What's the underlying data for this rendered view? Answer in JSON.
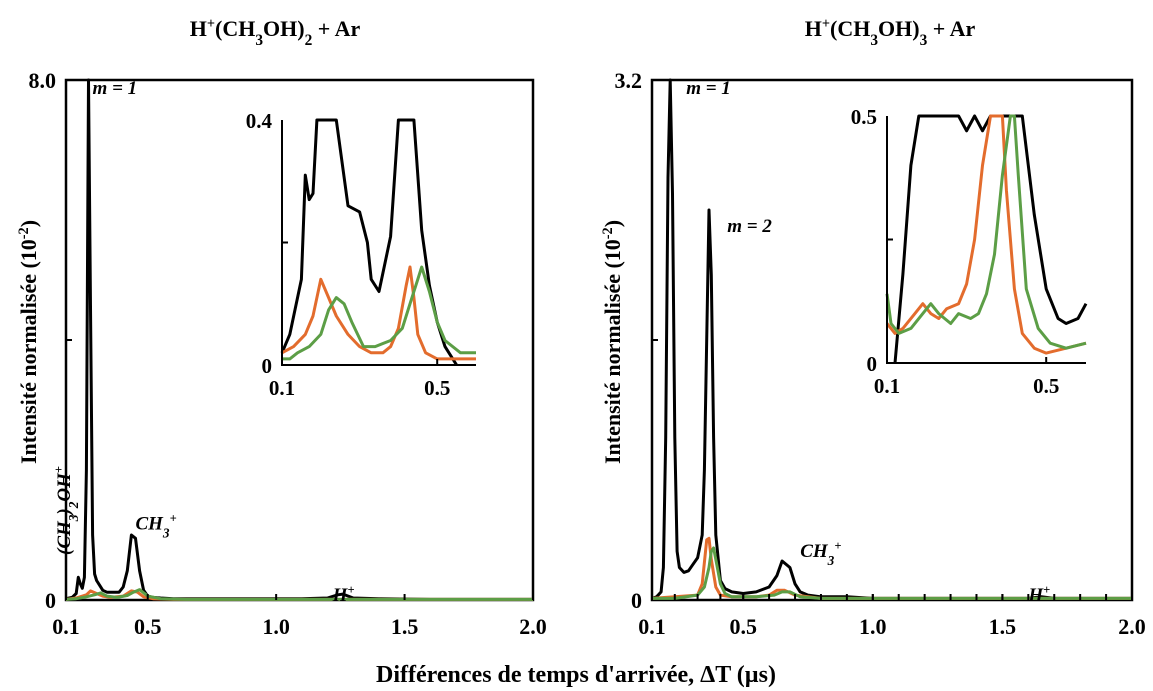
{
  "figure": {
    "xlabel": "Différences de temps d'arrivée, ΔT (µs)",
    "colors": {
      "black": "#000000",
      "orange": "#e36c2d",
      "green": "#5c9e46"
    }
  },
  "chart_data": [
    {
      "id": "left",
      "type": "line",
      "title_parts": [
        "H",
        "+",
        "(CH",
        "3",
        "OH)",
        "2",
        " + Ar"
      ],
      "title": "H+(CH3OH)2 + Ar",
      "ylabel": "Intensité normalisée (10-2)",
      "ylabel_parts": [
        "Intensité normalisée (10",
        "-2",
        ")"
      ],
      "xlim": [
        0.1,
        2.0
      ],
      "ylim": [
        0,
        8.0
      ],
      "x_ticks": [
        "0.1",
        "0.5",
        "1.0",
        "1.5",
        "2.0"
      ],
      "x_tick_values": [
        0.1,
        0.5,
        1.0,
        1.5,
        2.0
      ],
      "y_ticks": [
        "0",
        "8.0"
      ],
      "y_tick_values": [
        0,
        8.0
      ],
      "annotations": [
        {
          "text": "m = 1",
          "x": 0.23,
          "y": 8.0
        },
        {
          "text": "(CH3)2OH+",
          "x": 0.12,
          "y": 0.6,
          "parts": [
            "(CH",
            "3",
            ")",
            "2",
            "OH",
            "+"
          ]
        },
        {
          "text": "CH3+",
          "x": 0.44,
          "y": 1.3,
          "parts": [
            "CH",
            "3",
            "+"
          ]
        },
        {
          "text": "H+",
          "x": 1.22,
          "y": 0.2,
          "parts": [
            "H",
            "+"
          ]
        }
      ],
      "series": [
        {
          "color": "#000000",
          "x": [
            0.1,
            0.13,
            0.15,
            0.16,
            0.17,
            0.18,
            0.19,
            0.2,
            0.21,
            0.22,
            0.23,
            0.24,
            0.25,
            0.26,
            0.28,
            0.3,
            0.33,
            0.36,
            0.38,
            0.4,
            0.42,
            0.44,
            0.46,
            0.48,
            0.5,
            0.52,
            0.55,
            0.6,
            0.7,
            0.8,
            0.9,
            1.0,
            1.1,
            1.2,
            1.24,
            1.26,
            1.3,
            1.4,
            1.6,
            1.8,
            2.0
          ],
          "y": [
            0.02,
            0.04,
            0.1,
            0.35,
            0.25,
            0.18,
            0.35,
            2.0,
            8.0,
            4.5,
            1.0,
            0.4,
            0.3,
            0.25,
            0.15,
            0.12,
            0.12,
            0.12,
            0.2,
            0.45,
            1.0,
            0.95,
            0.45,
            0.15,
            0.06,
            0.04,
            0.03,
            0.02,
            0.02,
            0.02,
            0.02,
            0.02,
            0.02,
            0.03,
            0.08,
            0.09,
            0.03,
            0.02,
            0.01,
            0.01,
            0.01
          ]
        },
        {
          "color": "#e36c2d",
          "x": [
            0.1,
            0.15,
            0.2,
            0.22,
            0.25,
            0.28,
            0.32,
            0.38,
            0.42,
            0.45,
            0.48,
            0.52,
            0.6,
            1.0,
            1.5,
            2.0
          ],
          "y": [
            0.01,
            0.03,
            0.08,
            0.14,
            0.1,
            0.06,
            0.04,
            0.06,
            0.14,
            0.12,
            0.05,
            0.02,
            0.01,
            0.01,
            0.01,
            0.01
          ]
        },
        {
          "color": "#5c9e46",
          "x": [
            0.1,
            0.15,
            0.2,
            0.24,
            0.27,
            0.3,
            0.35,
            0.4,
            0.43,
            0.46,
            0.5,
            0.55,
            0.65,
            1.0,
            1.5,
            2.0
          ],
          "y": [
            0.01,
            0.02,
            0.05,
            0.08,
            0.11,
            0.06,
            0.04,
            0.07,
            0.12,
            0.16,
            0.06,
            0.02,
            0.01,
            0.01,
            0.01,
            0.01
          ]
        }
      ]
    },
    {
      "id": "left-inset",
      "type": "line",
      "xlim": [
        0.1,
        0.6
      ],
      "ylim": [
        0,
        0.4
      ],
      "x_ticks": [
        "0.1",
        "0.5"
      ],
      "x_tick_values": [
        0.1,
        0.5
      ],
      "y_ticks": [
        "0",
        "0.4"
      ],
      "y_tick_values": [
        0,
        0.4
      ],
      "series": [
        {
          "color": "#000000",
          "x": [
            0.1,
            0.12,
            0.15,
            0.16,
            0.17,
            0.18,
            0.19,
            0.2,
            0.22,
            0.24,
            0.27,
            0.3,
            0.32,
            0.33,
            0.35,
            0.36,
            0.38,
            0.4,
            0.41,
            0.44,
            0.46,
            0.48,
            0.5,
            0.52,
            0.55
          ],
          "y": [
            0.02,
            0.05,
            0.14,
            0.31,
            0.27,
            0.28,
            0.4,
            0.4,
            0.4,
            0.4,
            0.26,
            0.25,
            0.2,
            0.14,
            0.12,
            0.15,
            0.21,
            0.4,
            0.4,
            0.4,
            0.22,
            0.13,
            0.07,
            0.03,
            0.0
          ]
        },
        {
          "color": "#e36c2d",
          "x": [
            0.1,
            0.13,
            0.16,
            0.18,
            0.2,
            0.22,
            0.24,
            0.27,
            0.3,
            0.33,
            0.36,
            0.38,
            0.4,
            0.42,
            0.43,
            0.44,
            0.45,
            0.47,
            0.5,
            0.55,
            0.6
          ],
          "y": [
            0.02,
            0.03,
            0.05,
            0.08,
            0.14,
            0.11,
            0.08,
            0.05,
            0.03,
            0.02,
            0.02,
            0.03,
            0.06,
            0.13,
            0.16,
            0.11,
            0.05,
            0.02,
            0.01,
            0.01,
            0.01
          ]
        },
        {
          "color": "#5c9e46",
          "x": [
            0.1,
            0.12,
            0.14,
            0.17,
            0.2,
            0.22,
            0.24,
            0.26,
            0.28,
            0.31,
            0.34,
            0.38,
            0.41,
            0.43,
            0.45,
            0.46,
            0.48,
            0.5,
            0.52,
            0.56,
            0.6
          ],
          "y": [
            0.01,
            0.01,
            0.02,
            0.03,
            0.05,
            0.09,
            0.11,
            0.1,
            0.07,
            0.03,
            0.03,
            0.04,
            0.06,
            0.1,
            0.14,
            0.16,
            0.12,
            0.07,
            0.04,
            0.02,
            0.02
          ]
        }
      ]
    },
    {
      "id": "right",
      "type": "line",
      "title_parts": [
        "H",
        "+",
        "(CH",
        "3",
        "OH)",
        "3",
        " + Ar"
      ],
      "title": "H+(CH3OH)3 + Ar",
      "ylabel": "Intensité normalisée (10-2)",
      "ylabel_parts": [
        "Intensité normalisée (10",
        "-2",
        ")"
      ],
      "xlim": [
        0.1,
        2.0
      ],
      "ylim": [
        0,
        3.2
      ],
      "x_ticks": [
        "0.1",
        "0.5",
        "1.0",
        "1.5",
        "2.0"
      ],
      "x_tick_values": [
        0.1,
        0.5,
        1.0,
        1.5,
        2.0
      ],
      "y_ticks": [
        "0",
        "3.2"
      ],
      "y_tick_values": [
        0,
        3.2
      ],
      "annotations": [
        {
          "text": "m = 1",
          "x": 0.25,
          "y": 3.2
        },
        {
          "text": "m = 2",
          "x": 0.43,
          "y": 2.35
        },
        {
          "text": "CH3+",
          "x": 0.72,
          "y": 0.35,
          "parts": [
            "CH",
            "3",
            "+"
          ]
        },
        {
          "text": "H+",
          "x": 1.6,
          "y": 0.08,
          "parts": [
            "H",
            "+"
          ]
        }
      ],
      "series": [
        {
          "color": "#000000",
          "x": [
            0.1,
            0.12,
            0.14,
            0.15,
            0.16,
            0.17,
            0.18,
            0.19,
            0.2,
            0.21,
            0.22,
            0.24,
            0.26,
            0.28,
            0.3,
            0.32,
            0.33,
            0.34,
            0.35,
            0.36,
            0.37,
            0.38,
            0.4,
            0.42,
            0.45,
            0.5,
            0.55,
            0.6,
            0.63,
            0.65,
            0.68,
            0.7,
            0.72,
            0.75,
            0.8,
            0.9,
            1.0,
            1.2,
            1.4,
            1.6,
            1.65,
            1.7,
            1.8,
            2.0
          ],
          "y": [
            0.01,
            0.02,
            0.05,
            0.2,
            1.0,
            2.6,
            3.2,
            2.5,
            1.0,
            0.3,
            0.2,
            0.17,
            0.18,
            0.22,
            0.26,
            0.4,
            0.8,
            1.6,
            2.4,
            2.0,
            1.0,
            0.4,
            0.12,
            0.07,
            0.05,
            0.04,
            0.05,
            0.08,
            0.15,
            0.24,
            0.2,
            0.1,
            0.05,
            0.03,
            0.02,
            0.02,
            0.01,
            0.01,
            0.01,
            0.01,
            0.02,
            0.01,
            0.01,
            0.01
          ]
        },
        {
          "color": "#e36c2d",
          "x": [
            0.1,
            0.2,
            0.3,
            0.32,
            0.34,
            0.35,
            0.36,
            0.38,
            0.4,
            0.45,
            0.55,
            0.6,
            0.63,
            0.66,
            0.7,
            0.8,
            1.0,
            1.5,
            2.0
          ],
          "y": [
            0.01,
            0.02,
            0.03,
            0.1,
            0.37,
            0.38,
            0.25,
            0.08,
            0.03,
            0.02,
            0.02,
            0.03,
            0.06,
            0.06,
            0.03,
            0.01,
            0.01,
            0.01,
            0.01
          ]
        },
        {
          "color": "#5c9e46",
          "x": [
            0.1,
            0.2,
            0.3,
            0.33,
            0.35,
            0.36,
            0.37,
            0.38,
            0.4,
            0.42,
            0.45,
            0.55,
            0.62,
            0.65,
            0.68,
            0.72,
            0.8,
            1.0,
            1.5,
            2.0
          ],
          "y": [
            0.01,
            0.01,
            0.03,
            0.08,
            0.2,
            0.3,
            0.32,
            0.25,
            0.1,
            0.04,
            0.02,
            0.02,
            0.03,
            0.05,
            0.05,
            0.02,
            0.01,
            0.01,
            0.01,
            0.01
          ]
        }
      ]
    },
    {
      "id": "right-inset",
      "type": "line",
      "xlim": [
        0.1,
        0.6
      ],
      "ylim": [
        0,
        0.5
      ],
      "x_ticks": [
        "0.1",
        "0.5"
      ],
      "x_tick_values": [
        0.1,
        0.5
      ],
      "y_ticks": [
        "0",
        "0.5"
      ],
      "y_tick_values": [
        0,
        0.5
      ],
      "series": [
        {
          "color": "#000000",
          "x": [
            0.12,
            0.14,
            0.16,
            0.18,
            0.2,
            0.24,
            0.28,
            0.3,
            0.32,
            0.34,
            0.36,
            0.38,
            0.4,
            0.44,
            0.47,
            0.5,
            0.53,
            0.55,
            0.58,
            0.6
          ],
          "y": [
            0.0,
            0.18,
            0.4,
            0.5,
            0.5,
            0.5,
            0.5,
            0.47,
            0.5,
            0.47,
            0.5,
            0.5,
            0.5,
            0.5,
            0.3,
            0.15,
            0.09,
            0.08,
            0.09,
            0.12
          ]
        },
        {
          "color": "#e36c2d",
          "x": [
            0.1,
            0.12,
            0.14,
            0.17,
            0.19,
            0.21,
            0.23,
            0.25,
            0.28,
            0.3,
            0.32,
            0.34,
            0.36,
            0.38,
            0.39,
            0.4,
            0.42,
            0.44,
            0.47,
            0.5,
            0.55,
            0.6
          ],
          "y": [
            0.08,
            0.06,
            0.07,
            0.1,
            0.12,
            0.1,
            0.09,
            0.11,
            0.12,
            0.16,
            0.25,
            0.4,
            0.5,
            0.5,
            0.5,
            0.35,
            0.15,
            0.06,
            0.03,
            0.02,
            0.03,
            0.04
          ]
        },
        {
          "color": "#5c9e46",
          "x": [
            0.1,
            0.11,
            0.13,
            0.16,
            0.19,
            0.21,
            0.23,
            0.26,
            0.28,
            0.31,
            0.33,
            0.35,
            0.37,
            0.39,
            0.41,
            0.42,
            0.43,
            0.45,
            0.48,
            0.51,
            0.55,
            0.6
          ],
          "y": [
            0.14,
            0.08,
            0.06,
            0.07,
            0.1,
            0.12,
            0.1,
            0.08,
            0.1,
            0.09,
            0.1,
            0.14,
            0.22,
            0.38,
            0.5,
            0.5,
            0.38,
            0.15,
            0.07,
            0.04,
            0.03,
            0.04
          ]
        }
      ]
    }
  ]
}
